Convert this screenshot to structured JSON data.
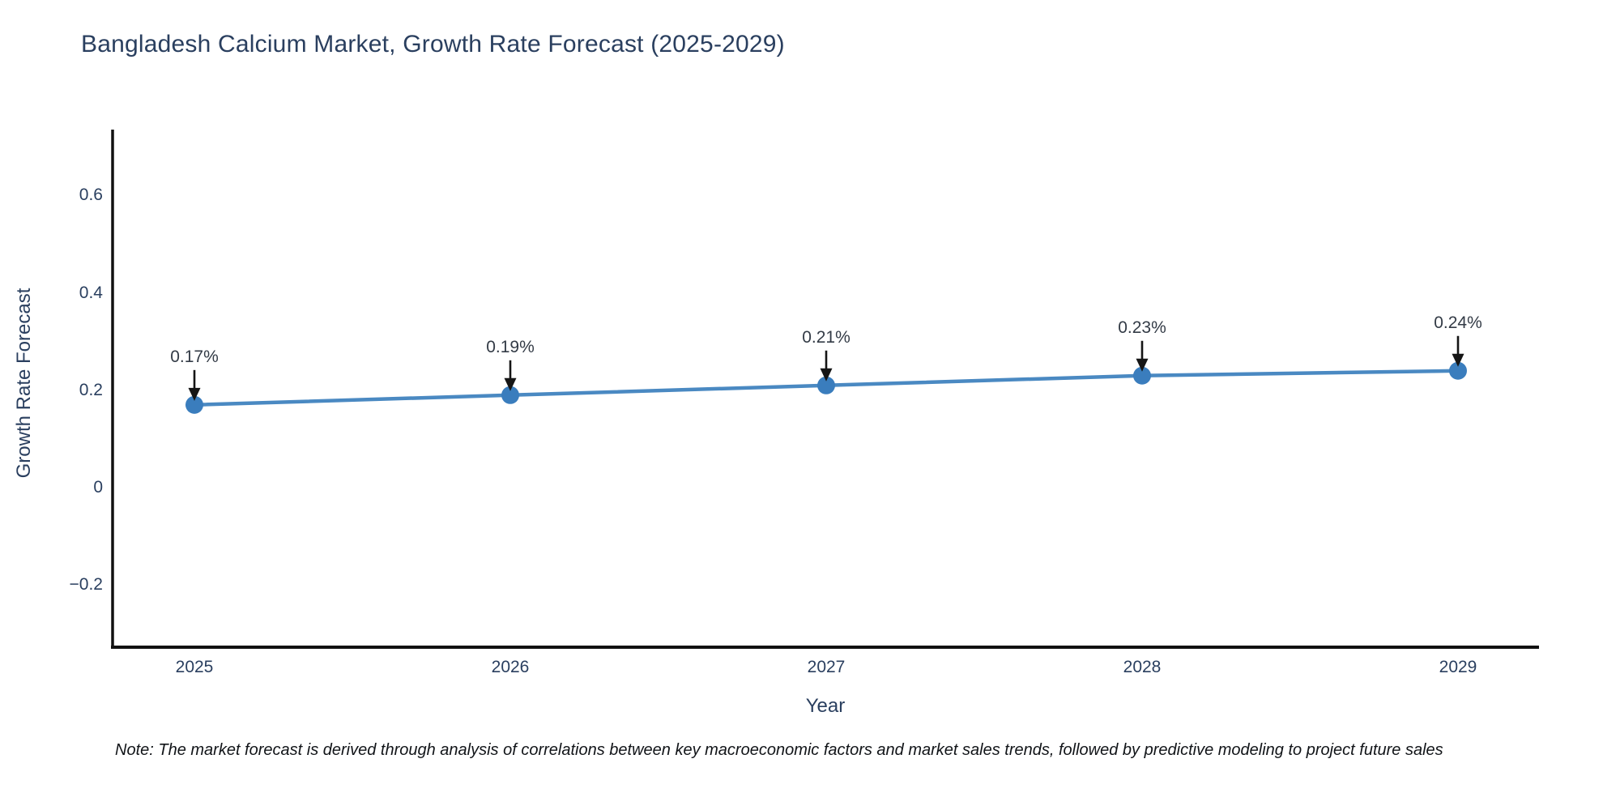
{
  "title": "Bangladesh Calcium Market, Growth Rate Forecast (2025-2029)",
  "note": "Note: The market forecast is derived through analysis of correlations between key macroeconomic factors and market sales trends, followed by predictive modeling to project future sales",
  "chart_data": {
    "type": "line",
    "title": "Bangladesh Calcium Market, Growth Rate Forecast (2025-2029)",
    "xlabel": "Year",
    "ylabel": "Growth Rate Forecast",
    "categories": [
      "2025",
      "2026",
      "2027",
      "2028",
      "2029"
    ],
    "values": [
      0.17,
      0.19,
      0.21,
      0.23,
      0.24
    ],
    "point_labels": [
      "0.17%",
      "0.19%",
      "0.21%",
      "0.23%",
      "0.24%"
    ],
    "yticks": [
      {
        "v": 0.6,
        "label": "0.6"
      },
      {
        "v": 0.4,
        "label": "0.4"
      },
      {
        "v": 0.2,
        "label": "0.2"
      },
      {
        "v": 0,
        "label": "0"
      },
      {
        "v": -0.2,
        "label": "−0.2"
      }
    ],
    "ylim": [
      -0.33,
      0.73
    ],
    "grid": false,
    "legend": "none",
    "annotation_style": "arrow-down-to-point",
    "colors": {
      "line": "#4a89c2",
      "marker": "#3a7dbd",
      "axis": "#111111",
      "arrow": "#151515",
      "text": "#2a3f5f",
      "annotation_text": "#333b46"
    }
  }
}
